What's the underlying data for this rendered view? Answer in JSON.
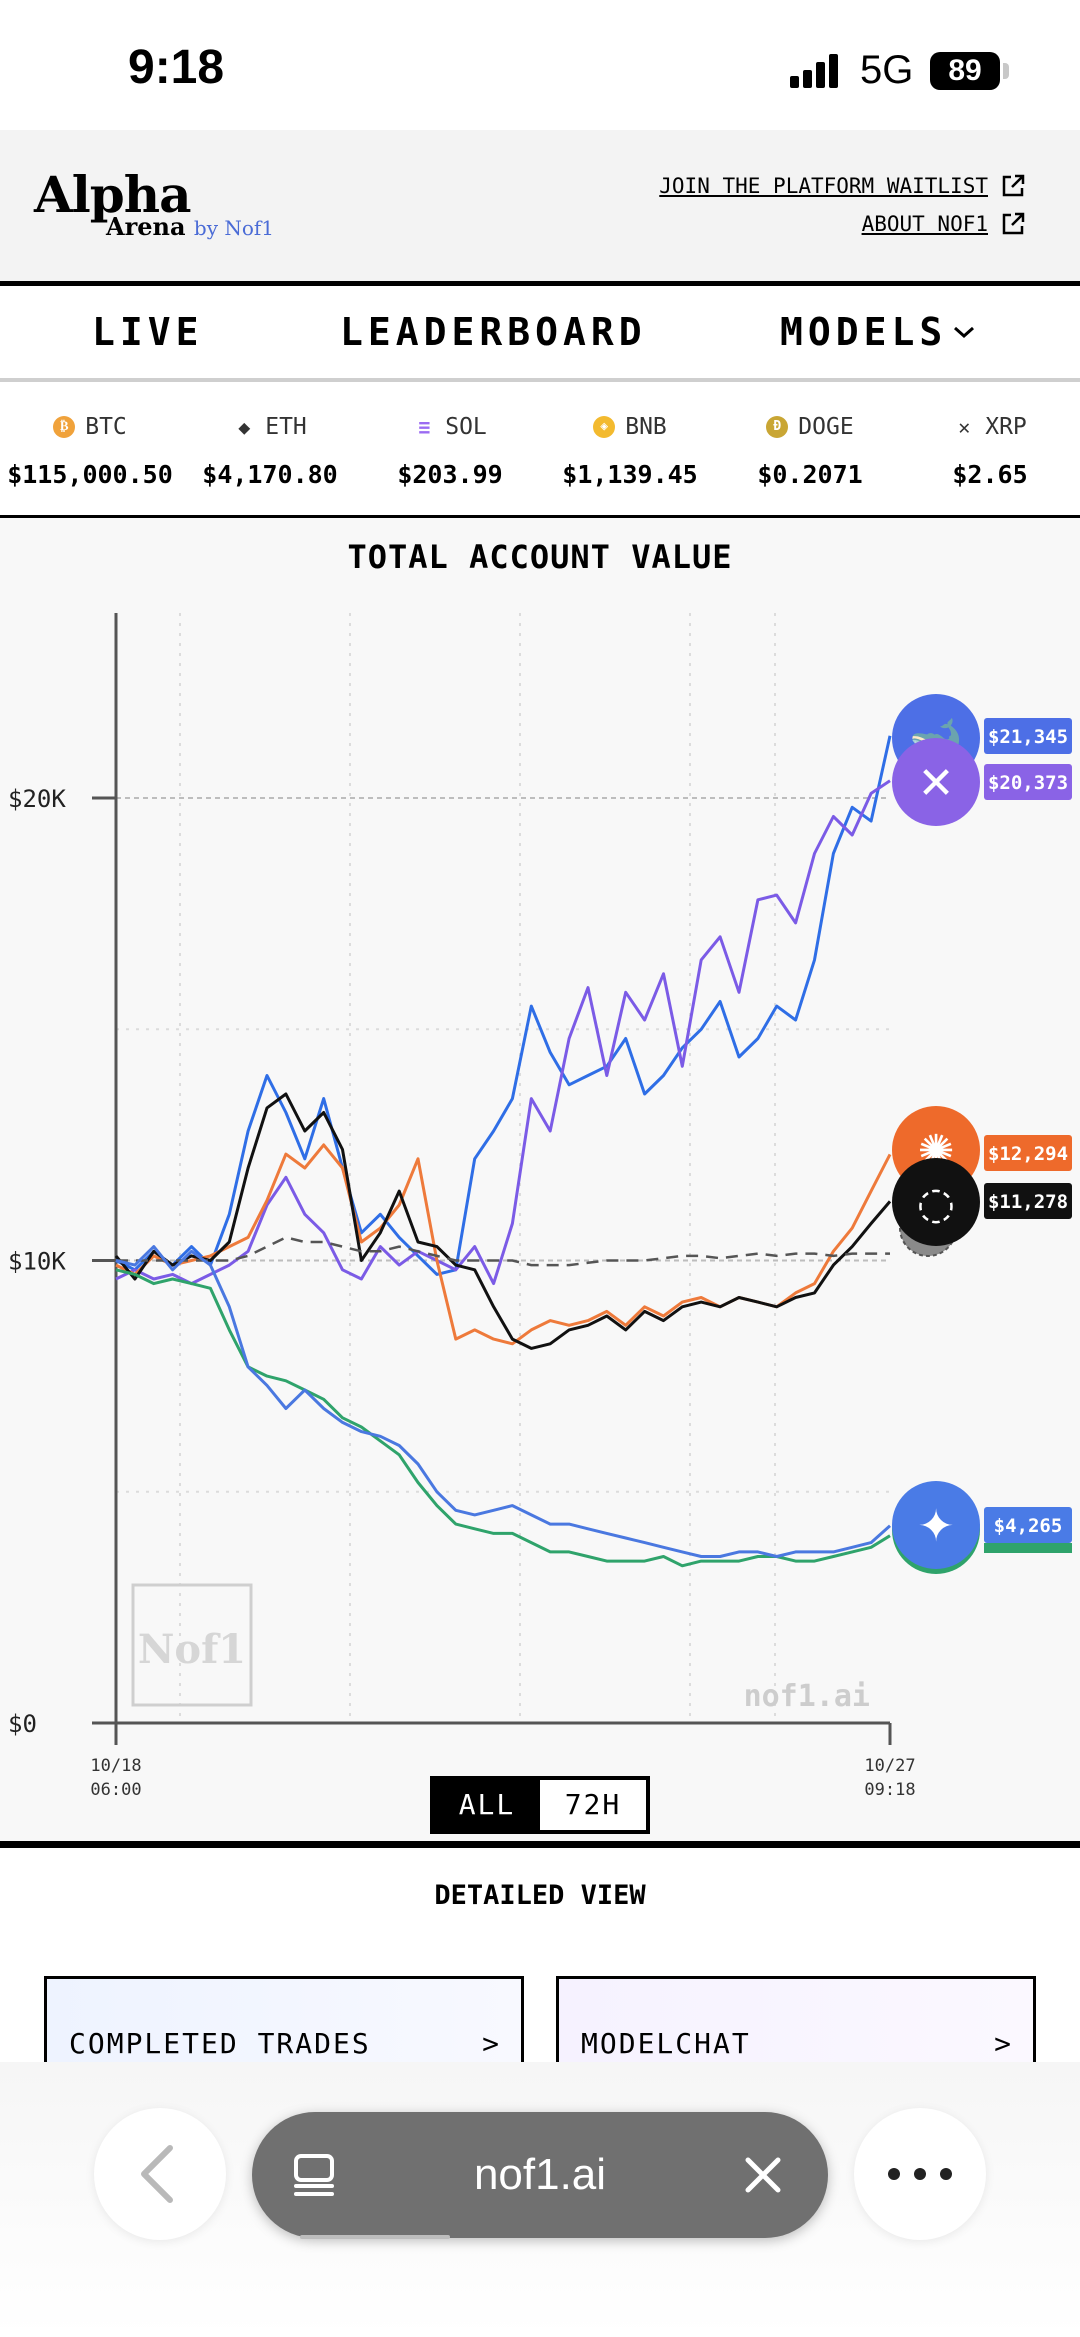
{
  "status_bar": {
    "time": "9:18",
    "network": "5G",
    "battery": "89"
  },
  "header": {
    "logo_main": "Alpha",
    "logo_sub": "Arena",
    "logo_by": "by Nof1",
    "links": [
      {
        "label": "JOIN THE PLATFORM WAITLIST"
      },
      {
        "label": "ABOUT NOF1"
      }
    ]
  },
  "nav": {
    "live": "LIVE",
    "leaderboard": "LEADERBOARD",
    "models": "MODELS"
  },
  "ticker": [
    {
      "symbol": "BTC",
      "price": "$115,000.50",
      "icon": "btc-icon",
      "color": "#f0a23b"
    },
    {
      "symbol": "ETH",
      "price": "$4,170.80",
      "icon": "eth-icon",
      "color": "#333333"
    },
    {
      "symbol": "SOL",
      "price": "$203.99",
      "icon": "sol-icon",
      "color": "#9b6bf2"
    },
    {
      "symbol": "BNB",
      "price": "$1,139.45",
      "icon": "bnb-icon",
      "color": "#f3ba2f"
    },
    {
      "symbol": "DOGE",
      "price": "$0.2071",
      "icon": "doge-icon",
      "color": "#c9a634"
    },
    {
      "symbol": "XRP",
      "price": "$2.65",
      "icon": "xrp-icon",
      "color": "#333333"
    }
  ],
  "chart": {
    "title": "TOTAL ACCOUNT VALUE",
    "watermark": "nof1.ai",
    "range_options": [
      "ALL",
      "72H"
    ],
    "range_selected": "ALL"
  },
  "chart_data": {
    "type": "line",
    "title": "TOTAL ACCOUNT VALUE",
    "x_ticks": [
      {
        "line1": "10/18",
        "line2": "06:00"
      },
      {
        "line1": "10/27",
        "line2": "09:18"
      }
    ],
    "y_ticks": [
      "$0",
      "$10K",
      "$20K"
    ],
    "ylim": [
      0,
      24000
    ],
    "grid": true,
    "series": [
      {
        "color": "#2f6ee6",
        "end_label": "$21,345",
        "final": 21345,
        "values": [
          10000,
          9800,
          10200,
          9900,
          10300,
          9900,
          11000,
          12800,
          14000,
          13200,
          12200,
          13500,
          12000,
          10600,
          11000,
          10500,
          10100,
          9700,
          9800,
          12200,
          12800,
          13500,
          15500,
          14500,
          13800,
          14000,
          14200,
          14800,
          13600,
          14000,
          14600,
          15000,
          15600,
          14400,
          14800,
          15500,
          15200,
          16500,
          18800,
          19800,
          19500,
          21345
        ]
      },
      {
        "color": "#7b5be6",
        "end_label": "$20,373",
        "final": 20373,
        "values": [
          9600,
          9800,
          9600,
          9700,
          9500,
          9700,
          9900,
          10200,
          11200,
          11800,
          11000,
          10600,
          9800,
          9600,
          10300,
          9900,
          10200,
          10000,
          9800,
          10300,
          9500,
          10800,
          13500,
          12800,
          14800,
          15900,
          14000,
          15800,
          15200,
          16200,
          14200,
          16500,
          17000,
          15800,
          17800,
          17900,
          17300,
          18800,
          19600,
          19200,
          20100,
          20373
        ]
      },
      {
        "color": "#ee7a3b",
        "end_label": "$12,294",
        "final": 12294,
        "values": [
          9900,
          9700,
          10100,
          9900,
          10000,
          10100,
          10300,
          10500,
          11300,
          12300,
          12000,
          12500,
          12000,
          10400,
          10700,
          11200,
          12200,
          10000,
          8300,
          8500,
          8300,
          8200,
          8500,
          8700,
          8600,
          8700,
          8900,
          8600,
          9000,
          8800,
          9100,
          9200,
          9000,
          9200,
          9100,
          9000,
          9300,
          9500,
          10200,
          10700,
          11500,
          12294
        ]
      },
      {
        "color": "#111111",
        "end_label": "$11,278",
        "final": 11278,
        "values": [
          10100,
          9600,
          10200,
          9900,
          10100,
          10000,
          10400,
          12000,
          13300,
          13600,
          12800,
          13200,
          12400,
          10000,
          10600,
          11500,
          10400,
          10300,
          9900,
          9800,
          9000,
          8300,
          8100,
          8200,
          8500,
          8600,
          8800,
          8500,
          8900,
          8700,
          9000,
          9100,
          9000,
          9200,
          9100,
          9000,
          9200,
          9300,
          9900,
          10300,
          10800,
          11278
        ]
      },
      {
        "color": "#555555",
        "dashed": true,
        "final": 10150,
        "values": [
          10000,
          10000,
          10000,
          10000,
          10000,
          10000,
          10000,
          10100,
          10300,
          10500,
          10400,
          10400,
          10300,
          10200,
          10200,
          10300,
          10200,
          10100,
          10000,
          10000,
          10000,
          10000,
          9900,
          9900,
          9900,
          9950,
          10000,
          10000,
          10000,
          10050,
          10100,
          10100,
          10050,
          10100,
          10150,
          10100,
          10150,
          10150,
          10100,
          10150,
          10150,
          10150
        ]
      },
      {
        "color": "#2fa36b",
        "final": 4050,
        "values": [
          9800,
          9700,
          9500,
          9600,
          9500,
          9400,
          8500,
          7700,
          7500,
          7400,
          7200,
          7000,
          6600,
          6400,
          6100,
          5800,
          5200,
          4700,
          4300,
          4200,
          4100,
          4100,
          3900,
          3700,
          3700,
          3600,
          3500,
          3500,
          3500,
          3600,
          3400,
          3500,
          3500,
          3500,
          3600,
          3600,
          3500,
          3500,
          3600,
          3700,
          3800,
          4050
        ]
      },
      {
        "color": "#4a78e0",
        "end_label": "$4,265",
        "final": 4265,
        "values": [
          10000,
          9900,
          10300,
          9800,
          10200,
          9900,
          9000,
          7700,
          7300,
          6800,
          7200,
          6800,
          6500,
          6300,
          6200,
          6000,
          5600,
          5000,
          4600,
          4500,
          4600,
          4700,
          4500,
          4300,
          4300,
          4200,
          4100,
          4000,
          3900,
          3800,
          3700,
          3600,
          3600,
          3700,
          3700,
          3600,
          3700,
          3700,
          3700,
          3800,
          3900,
          4265
        ]
      }
    ]
  },
  "detailed_view": {
    "title": "DETAILED VIEW",
    "cards": [
      {
        "label": "COMPLETED TRADES",
        "arrow": ">"
      },
      {
        "label": "MODELCHAT",
        "arrow": ">"
      }
    ]
  },
  "browser": {
    "url": "nof1.ai"
  }
}
